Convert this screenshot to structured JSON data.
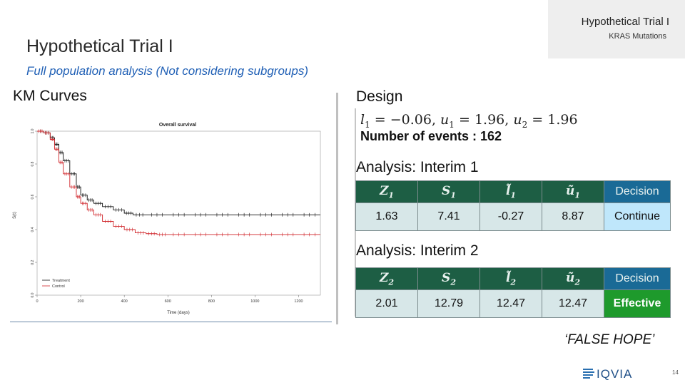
{
  "header": {
    "tag_title": "Hypothetical Trial I",
    "tag_subtitle": "KRAS Mutations",
    "page_title": "Hypothetical Trial I",
    "subtitle": "Full population analysis (Not considering subgroups)"
  },
  "km": {
    "section_title": "KM Curves",
    "plot_title": "Overall survival",
    "xlabel": "Time (days)",
    "ylabel": "S(t)",
    "x_ticks": [
      "0",
      "200",
      "400",
      "600",
      "800",
      "1000",
      "1200"
    ],
    "y_ticks": [
      "0.0",
      "0.2",
      "0.4",
      "0.6",
      "0.8",
      "1.0"
    ],
    "legend": [
      "Treatment",
      "Control"
    ],
    "colors": {
      "treatment": "#111111",
      "control": "#d0252a"
    }
  },
  "chart_data": {
    "type": "line",
    "title": "Overall survival",
    "xlabel": "Time (days)",
    "ylabel": "S(t)",
    "xlim": [
      0,
      1300
    ],
    "ylim": [
      0,
      1.0
    ],
    "legend_position": "bottom-left",
    "series": [
      {
        "name": "Treatment",
        "x": [
          0,
          30,
          60,
          80,
          100,
          120,
          150,
          180,
          200,
          230,
          260,
          300,
          350,
          400,
          440,
          500,
          600,
          700,
          800,
          900,
          1000,
          1100,
          1200,
          1300
        ],
        "y": [
          1.0,
          0.99,
          0.96,
          0.92,
          0.87,
          0.82,
          0.74,
          0.66,
          0.61,
          0.58,
          0.56,
          0.54,
          0.52,
          0.5,
          0.49,
          0.49,
          0.49,
          0.49,
          0.49,
          0.49,
          0.49,
          0.49,
          0.49,
          0.49
        ]
      },
      {
        "name": "Control",
        "x": [
          0,
          30,
          60,
          80,
          100,
          120,
          150,
          180,
          200,
          230,
          260,
          300,
          350,
          400,
          450,
          500,
          550,
          600,
          700,
          800,
          900,
          1000,
          1100,
          1200,
          1300
        ],
        "y": [
          1.0,
          0.99,
          0.95,
          0.89,
          0.81,
          0.74,
          0.66,
          0.6,
          0.56,
          0.52,
          0.49,
          0.45,
          0.42,
          0.4,
          0.38,
          0.375,
          0.37,
          0.37,
          0.37,
          0.37,
          0.37,
          0.37,
          0.37,
          0.37,
          0.37
        ]
      }
    ]
  },
  "design": {
    "title": "Design",
    "l1_value": "−0.06",
    "u1_value": "1.96",
    "u2_value": "1.96",
    "events_label": "Number of events : 162"
  },
  "analysis1": {
    "title": "Analysis: Interim 1",
    "headers": [
      "Z",
      "S",
      "l̃",
      "ũ"
    ],
    "decision_header": "Decision",
    "values": [
      "1.63",
      "7.41",
      "-0.27",
      "8.87"
    ],
    "decision": "Continue"
  },
  "analysis2": {
    "title": "Analysis: Interim 2",
    "headers": [
      "Z",
      "S",
      "l̃",
      "ũ"
    ],
    "decision_header": "Decision",
    "values": [
      "2.01",
      "12.79",
      "12.47",
      "12.47"
    ],
    "decision": "Effective"
  },
  "footer": {
    "false_hope": "‘FALSE HOPE’",
    "logo_text": "IQVIA",
    "page_number": "14"
  }
}
